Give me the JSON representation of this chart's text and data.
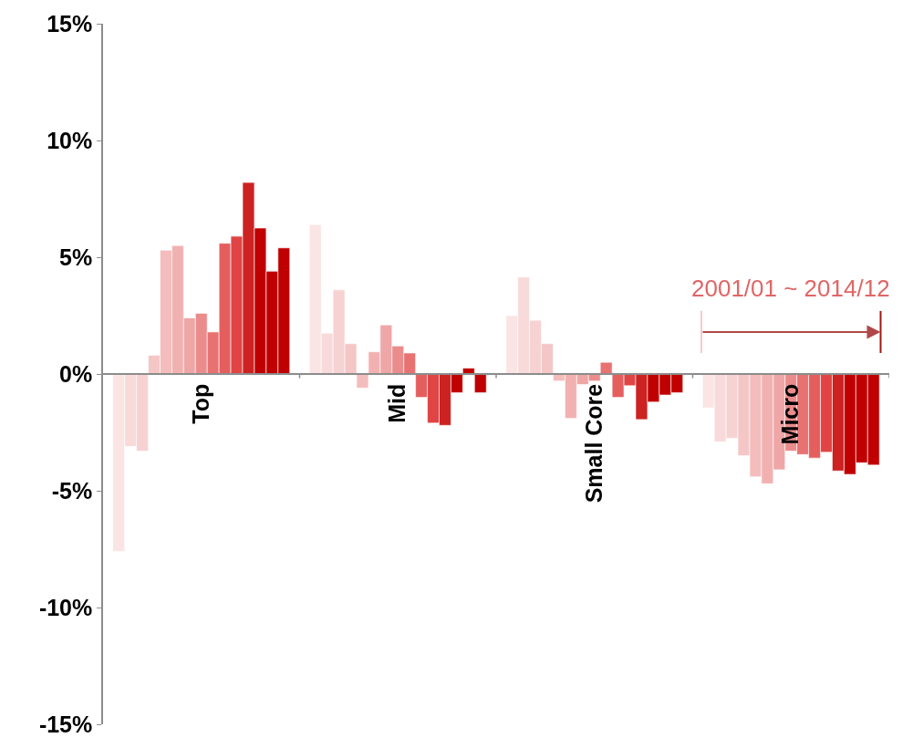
{
  "chart_data": {
    "type": "bar",
    "categories": [
      "Top",
      "Mid",
      "Small Core",
      "Micro"
    ],
    "series": [
      {
        "color": "#fbe4e4",
        "values": [
          -7.6,
          6.4,
          2.5,
          -1.45
        ]
      },
      {
        "color": "#f9dada",
        "values": [
          -3.1,
          1.75,
          4.15,
          -2.9
        ]
      },
      {
        "color": "#f7d2d2",
        "values": [
          -3.3,
          3.6,
          2.3,
          -2.75
        ]
      },
      {
        "color": "#f5c6c6",
        "values": [
          0.8,
          1.3,
          1.3,
          -3.5
        ]
      },
      {
        "color": "#f4bcbc",
        "values": [
          5.3,
          -0.6,
          -0.3,
          -4.4
        ]
      },
      {
        "color": "#f2b1b1",
        "values": [
          5.5,
          0.95,
          -1.9,
          -4.7
        ]
      },
      {
        "color": "#efa6a6",
        "values": [
          2.4,
          2.1,
          -0.45,
          -4.1
        ]
      },
      {
        "color": "#eb8c8c",
        "values": [
          2.6,
          1.2,
          -0.3,
          -3.3
        ]
      },
      {
        "color": "#e87272",
        "values": [
          1.8,
          0.9,
          0.5,
          -3.45
        ]
      },
      {
        "color": "#e55e5e",
        "values": [
          5.6,
          -1.0,
          -1.0,
          -3.6
        ]
      },
      {
        "color": "#e04444",
        "values": [
          5.9,
          -2.1,
          -0.5,
          -3.35
        ]
      },
      {
        "color": "#cc2222",
        "values": [
          8.2,
          -2.2,
          -1.95,
          -4.15
        ]
      },
      {
        "color": "#c00000",
        "values": [
          6.25,
          -0.8,
          -1.2,
          -4.3
        ]
      },
      {
        "color": "#c00000",
        "values": [
          4.4,
          0.25,
          -0.9,
          -3.8
        ]
      },
      {
        "color": "#c00000",
        "values": [
          5.4,
          -0.8,
          -0.8,
          -3.9
        ]
      }
    ],
    "ylim": [
      -15,
      15
    ],
    "yticks": [
      {
        "value": -15,
        "label": "-15%"
      },
      {
        "value": -10,
        "label": "-10%"
      },
      {
        "value": -5,
        "label": "-5%"
      },
      {
        "value": 0,
        "label": "0%"
      },
      {
        "value": 5,
        "label": "5%"
      },
      {
        "value": 10,
        "label": "10%"
      },
      {
        "value": 15,
        "label": "15%"
      }
    ],
    "annotations": [
      "2001/01 ~ 2014/12"
    ]
  }
}
